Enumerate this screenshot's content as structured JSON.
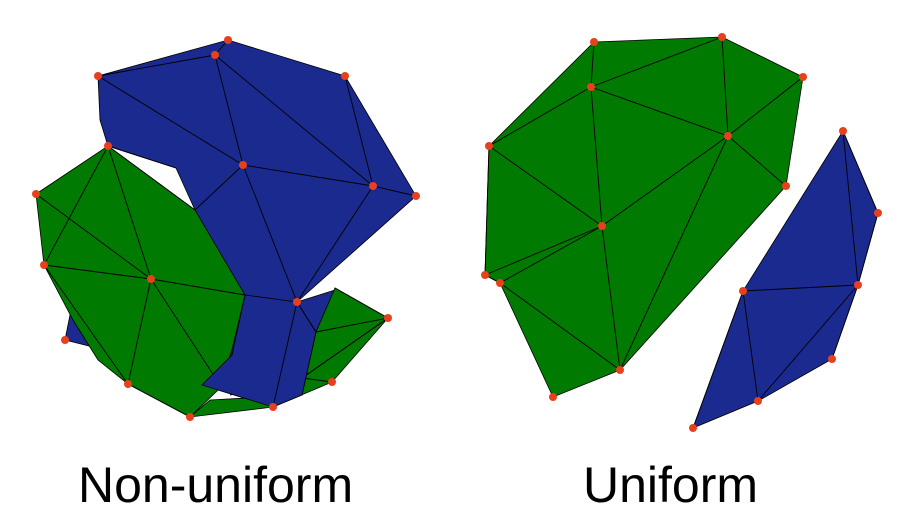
{
  "colors": {
    "green": "#007a00",
    "blue": "#1a2a8e",
    "vertex": "#e8401c",
    "edge": "#000000"
  },
  "captions": {
    "left": "Non-uniform",
    "right": "Uniform"
  },
  "panels": [
    "non-uniform-mesh",
    "uniform-mesh"
  ]
}
